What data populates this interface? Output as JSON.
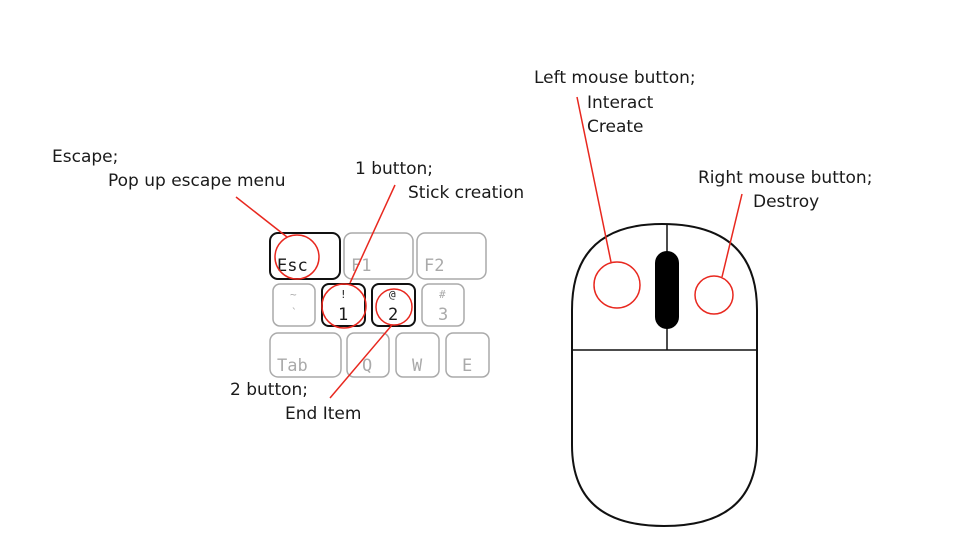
{
  "colors": {
    "annotation": "#e8281f",
    "active_key": "#111111",
    "inactive_key": "#aaaaaa",
    "text": "#1a1a1a"
  },
  "keyboard": {
    "keys": {
      "esc": "Esc",
      "f1": "F1",
      "f2": "F2",
      "tilde_top": "~",
      "tilde_bottom": "`",
      "one_top": "!",
      "one_bottom": "1",
      "two_top": "@",
      "two_bottom": "2",
      "three_top": "#",
      "three_bottom": "3",
      "tab": "Tab",
      "q": "Q",
      "w": "W",
      "e": "E"
    }
  },
  "annotations": {
    "escape": {
      "line1": "Escape;",
      "line2": "Pop up escape menu"
    },
    "one_button": {
      "line1": "1 button;",
      "line2": "Stick creation"
    },
    "two_button": {
      "line1": "2 button;",
      "line2": "End Item"
    },
    "left_mouse": {
      "line1": "Left mouse button;",
      "line2": "Interact",
      "line3": "Create"
    },
    "right_mouse": {
      "line1": "Right mouse button;",
      "line2": "Destroy"
    }
  }
}
